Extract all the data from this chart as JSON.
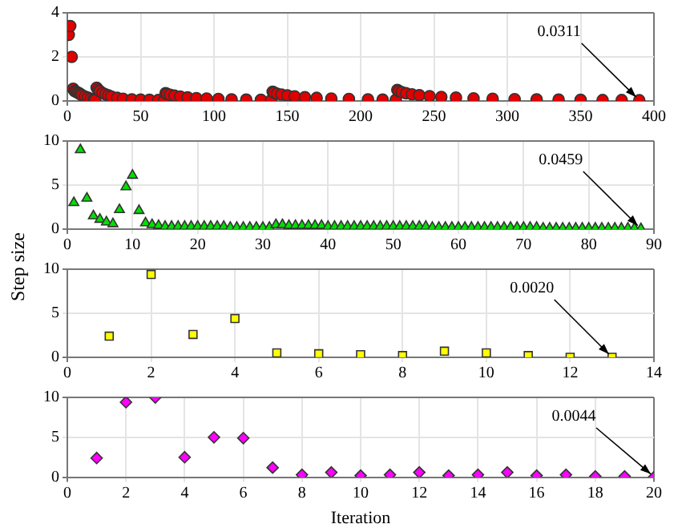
{
  "chart_data": [
    {
      "type": "scatter",
      "marker": "circle",
      "grid": true,
      "xlim": [
        0,
        400
      ],
      "xticks": [
        0,
        50,
        100,
        150,
        200,
        250,
        300,
        350,
        400
      ],
      "ylim": [
        0,
        4
      ],
      "yticks": [
        0,
        2,
        4
      ],
      "annotations": [
        {
          "text": "0.0311",
          "x": 390,
          "y": 0.0311
        }
      ],
      "series": [
        {
          "color": "#e00000",
          "x": [
            1,
            2,
            3,
            4,
            5,
            6,
            7,
            8,
            9,
            10,
            12,
            14,
            16,
            18,
            19,
            20,
            21,
            22,
            24,
            26,
            28,
            30,
            34,
            38,
            44,
            50,
            56,
            62,
            66,
            67,
            68,
            70,
            73,
            77,
            82,
            88,
            95,
            103,
            112,
            122,
            132,
            139,
            140,
            141,
            143,
            146,
            150,
            155,
            162,
            170,
            180,
            192,
            205,
            215,
            224,
            225,
            226,
            228,
            231,
            235,
            240,
            247,
            255,
            265,
            277,
            290,
            305,
            320,
            335,
            350,
            365,
            378,
            390
          ],
          "values": [
            3.0,
            3.4,
            2.0,
            0.55,
            0.45,
            0.42,
            0.38,
            0.35,
            0.3,
            0.26,
            0.2,
            0.15,
            0.1,
            0.07,
            0.05,
            0.6,
            0.52,
            0.45,
            0.36,
            0.3,
            0.25,
            0.2,
            0.14,
            0.1,
            0.07,
            0.06,
            0.05,
            0.04,
            0.03,
            0.35,
            0.32,
            0.28,
            0.24,
            0.2,
            0.16,
            0.13,
            0.11,
            0.09,
            0.07,
            0.06,
            0.05,
            0.04,
            0.42,
            0.38,
            0.33,
            0.29,
            0.25,
            0.21,
            0.17,
            0.14,
            0.11,
            0.09,
            0.07,
            0.06,
            0.05,
            0.5,
            0.45,
            0.4,
            0.35,
            0.3,
            0.26,
            0.22,
            0.18,
            0.15,
            0.12,
            0.1,
            0.08,
            0.07,
            0.06,
            0.05,
            0.04,
            0.04,
            0.0311
          ]
        }
      ]
    },
    {
      "type": "scatter",
      "marker": "triangle",
      "grid": true,
      "ylabel": "Step size",
      "xlim": [
        0,
        90
      ],
      "xticks": [
        0,
        10,
        20,
        30,
        40,
        50,
        60,
        70,
        80,
        90
      ],
      "ylim": [
        0,
        10
      ],
      "yticks": [
        0,
        5,
        10
      ],
      "annotations": [
        {
          "text": "0.0459",
          "x": 88,
          "y": 0.0459
        }
      ],
      "series": [
        {
          "color": "#00e000",
          "x": [
            1,
            2,
            3,
            4,
            5,
            6,
            7,
            8,
            9,
            10,
            11,
            12,
            13,
            14,
            15,
            16,
            17,
            18,
            19,
            20,
            21,
            22,
            23,
            24,
            25,
            26,
            27,
            28,
            29,
            30,
            31,
            32,
            33,
            34,
            35,
            36,
            37,
            38,
            39,
            40,
            41,
            42,
            43,
            44,
            45,
            46,
            47,
            48,
            49,
            50,
            51,
            52,
            53,
            54,
            55,
            56,
            57,
            58,
            59,
            60,
            61,
            62,
            63,
            64,
            65,
            66,
            67,
            68,
            69,
            70,
            71,
            72,
            73,
            74,
            75,
            76,
            77,
            78,
            79,
            80,
            81,
            82,
            83,
            84,
            85,
            86,
            87,
            88
          ],
          "values": [
            3,
            9,
            3.5,
            1.5,
            1.1,
            0.8,
            0.6,
            2.2,
            4.8,
            6.1,
            2.1,
            0.7,
            0.5,
            0.4,
            0.3,
            0.3,
            0.3,
            0.3,
            0.3,
            0.3,
            0.3,
            0.3,
            0.3,
            0.3,
            0.2,
            0.2,
            0.2,
            0.2,
            0.2,
            0.2,
            0.2,
            0.5,
            0.5,
            0.4,
            0.4,
            0.4,
            0.4,
            0.4,
            0.4,
            0.3,
            0.3,
            0.3,
            0.3,
            0.3,
            0.3,
            0.3,
            0.3,
            0.3,
            0.3,
            0.3,
            0.3,
            0.3,
            0.3,
            0.3,
            0.3,
            0.2,
            0.2,
            0.2,
            0.2,
            0.2,
            0.2,
            0.2,
            0.2,
            0.2,
            0.2,
            0.2,
            0.2,
            0.2,
            0.2,
            0.2,
            0.2,
            0.2,
            0.1,
            0.1,
            0.1,
            0.1,
            0.1,
            0.1,
            0.1,
            0.1,
            0.1,
            0.1,
            0.1,
            0.1,
            0.1,
            0.1,
            0.1,
            0.0459
          ]
        }
      ]
    },
    {
      "type": "scatter",
      "marker": "square",
      "grid": true,
      "xlim": [
        0,
        14
      ],
      "xticks": [
        0,
        2,
        4,
        6,
        8,
        10,
        12,
        14
      ],
      "ylim": [
        0,
        10
      ],
      "yticks": [
        0,
        5,
        10
      ],
      "annotations": [
        {
          "text": "0.0020",
          "x": 13,
          "y": 0.002
        }
      ],
      "series": [
        {
          "color": "#ffff00",
          "x": [
            1,
            2,
            3,
            4,
            5,
            6,
            7,
            8,
            9,
            10,
            11,
            12,
            13
          ],
          "values": [
            2.4,
            9.4,
            2.6,
            4.4,
            0.5,
            0.4,
            0.3,
            0.2,
            0.7,
            0.5,
            0.2,
            0,
            0.002
          ]
        }
      ]
    },
    {
      "type": "scatter",
      "marker": "diamond",
      "grid": true,
      "xlabel": "Iteration",
      "xlim": [
        0,
        20
      ],
      "xticks": [
        0,
        2,
        4,
        6,
        8,
        10,
        12,
        14,
        16,
        18,
        20
      ],
      "ylim": [
        0,
        10
      ],
      "yticks": [
        0,
        5,
        10
      ],
      "annotations": [
        {
          "text": "0.0044",
          "x": 20,
          "y": 0.0044
        }
      ],
      "series": [
        {
          "color": "#ff00ff",
          "x": [
            1,
            2,
            3,
            4,
            5,
            6,
            7,
            8,
            9,
            10,
            11,
            12,
            13,
            14,
            15,
            16,
            17,
            18,
            19,
            20
          ],
          "values": [
            2.4,
            9.4,
            10,
            2.5,
            5,
            4.9,
            1.2,
            0.3,
            0.6,
            0.2,
            0.3,
            0.6,
            0.2,
            0.3,
            0.6,
            0.2,
            0.3,
            0.1,
            0.1,
            0.0044
          ]
        }
      ]
    }
  ]
}
